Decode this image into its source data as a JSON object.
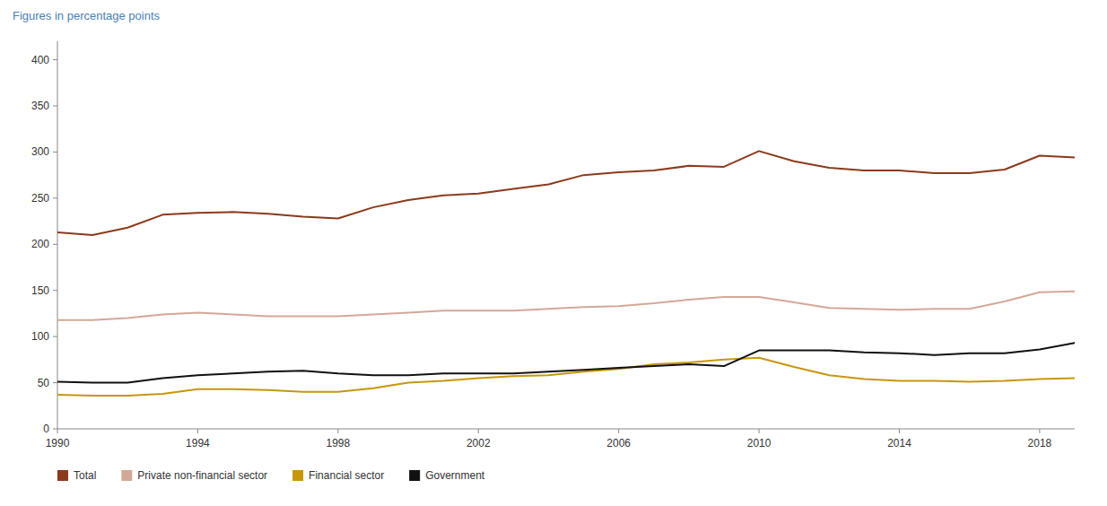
{
  "chart_data": {
    "type": "line",
    "ylabel": "Figures in percentage points",
    "x": [
      1990,
      1991,
      1992,
      1993,
      1994,
      1995,
      1996,
      1997,
      1998,
      1999,
      2000,
      2001,
      2002,
      2003,
      2004,
      2005,
      2006,
      2007,
      2008,
      2009,
      2010,
      2011,
      2012,
      2013,
      2014,
      2015,
      2016,
      2017,
      2018,
      2019
    ],
    "series": [
      {
        "name": "Total",
        "color": "#8B3A1A",
        "values": [
          213,
          210,
          218,
          232,
          234,
          235,
          233,
          230,
          228,
          240,
          248,
          253,
          255,
          260,
          265,
          275,
          278,
          280,
          285,
          284,
          301,
          290,
          283,
          280,
          280,
          277,
          277,
          281,
          296,
          294
        ]
      },
      {
        "name": "Private non-financial sector",
        "color": "#D4A898",
        "values": [
          118,
          118,
          120,
          124,
          126,
          124,
          122,
          122,
          122,
          124,
          126,
          128,
          128,
          128,
          130,
          132,
          133,
          136,
          140,
          143,
          143,
          137,
          131,
          130,
          129,
          130,
          130,
          138,
          148,
          149
        ]
      },
      {
        "name": "Financial sector",
        "color": "#C8960C",
        "values": [
          37,
          36,
          36,
          38,
          43,
          43,
          42,
          40,
          40,
          44,
          50,
          52,
          55,
          57,
          58,
          62,
          65,
          70,
          72,
          75,
          77,
          67,
          58,
          54,
          52,
          52,
          51,
          52,
          54,
          55
        ]
      },
      {
        "name": "Government",
        "color": "#111111",
        "values": [
          51,
          50,
          50,
          55,
          58,
          60,
          62,
          63,
          60,
          58,
          58,
          60,
          60,
          60,
          62,
          64,
          66,
          68,
          70,
          68,
          85,
          85,
          85,
          83,
          82,
          80,
          82,
          82,
          86,
          93
        ]
      }
    ],
    "ylim": [
      0,
      420
    ],
    "yticks": [
      0,
      50,
      100,
      150,
      200,
      250,
      300,
      350,
      400
    ],
    "xlim": [
      1990,
      2019
    ],
    "xticks": [
      1990,
      1994,
      1998,
      2002,
      2006,
      2010,
      2014,
      2018
    ],
    "grid": false,
    "legend": "bottom"
  }
}
